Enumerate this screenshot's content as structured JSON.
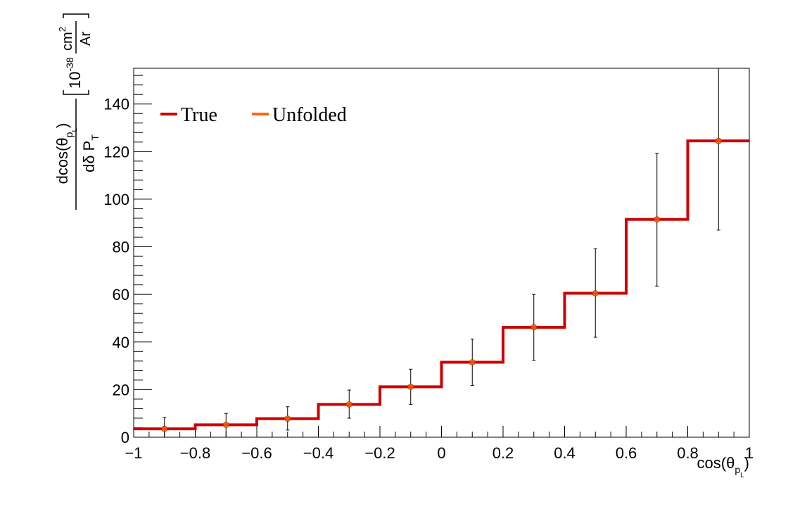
{
  "chart_data": {
    "type": "histogram",
    "xlabel": "cos(θ",
    "xlabel_sub": "p",
    "xlabel_subsub": "L",
    "xlabel_close": ")",
    "ylabel": {
      "numerator": "dcos(θ",
      "numerator_sub": "p",
      "numerator_subsub": "L",
      "numerator_close": ")",
      "denominator": "dδ P",
      "denominator_sub": "T",
      "unit_prefix": "10",
      "unit_exp": "-38",
      "unit_cm": "cm",
      "unit_cm_exp": "2",
      "unit_den": "Ar"
    },
    "xlim": [
      -1,
      1
    ],
    "ylim": [
      0,
      155
    ],
    "x_ticks": [
      -1,
      -0.8,
      -0.6,
      -0.4,
      -0.2,
      0,
      0.2,
      0.4,
      0.6,
      0.8,
      1
    ],
    "x_tick_labels": [
      "−1",
      "−0.8",
      "−0.6",
      "−0.4",
      "−0.2",
      "0",
      "0.2",
      "0.4",
      "0.6",
      "0.8",
      "1"
    ],
    "y_ticks": [
      0,
      20,
      40,
      60,
      80,
      100,
      120,
      140
    ],
    "y_tick_labels": [
      "0",
      "20",
      "40",
      "60",
      "80",
      "100",
      "120",
      "140"
    ],
    "bin_edges": [
      -1,
      -0.8,
      -0.6,
      -0.4,
      -0.2,
      0,
      0.2,
      0.4,
      0.6,
      0.8,
      1
    ],
    "legend_position": "top-left",
    "series": [
      {
        "name": "True",
        "style": "step",
        "color": "#cc0000",
        "values": [
          3.5,
          5.2,
          7.8,
          13.8,
          21.2,
          31.5,
          46.2,
          60.5,
          91.5,
          124.5
        ]
      },
      {
        "name": "Unfolded",
        "style": "points",
        "color": "#ff6600",
        "values": [
          3.5,
          5.2,
          7.8,
          13.8,
          21.2,
          31.5,
          46.2,
          60.5,
          91.5,
          124.5
        ],
        "err_low": [
          3.5,
          5.2,
          4.8,
          5.8,
          7.4,
          9.8,
          13.9,
          18.5,
          28.0,
          37.5
        ],
        "err_high": [
          4.8,
          4.8,
          5.0,
          6.0,
          7.4,
          9.7,
          13.8,
          18.7,
          27.8,
          31.0
        ]
      }
    ]
  }
}
